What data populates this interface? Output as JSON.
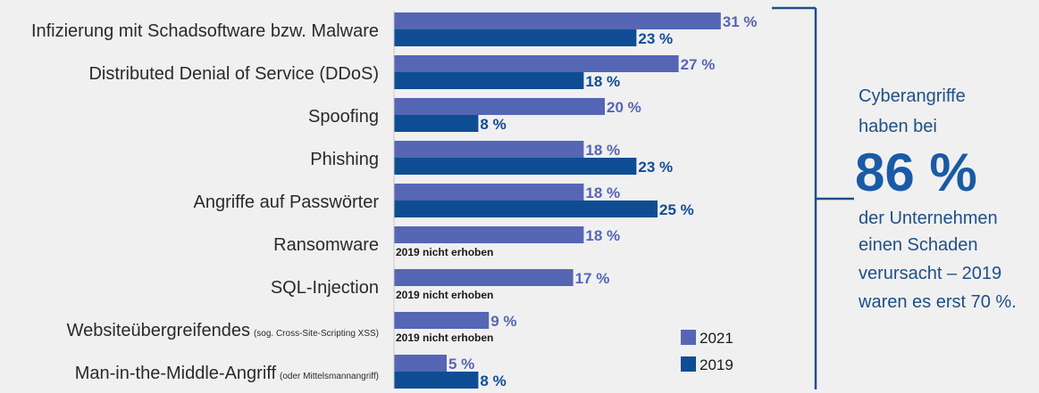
{
  "chart_data": {
    "type": "bar",
    "orientation": "horizontal",
    "categories": [
      {
        "label": "Infizierung mit Schadsoftware bzw. Malware",
        "sub": ""
      },
      {
        "label": "Distributed Denial of Service (DDoS)",
        "sub": ""
      },
      {
        "label": "Spoofing",
        "sub": ""
      },
      {
        "label": "Phishing",
        "sub": ""
      },
      {
        "label": "Angriffe auf Passwörter",
        "sub": ""
      },
      {
        "label": "Ransomware",
        "sub": ""
      },
      {
        "label": "SQL-Injection",
        "sub": ""
      },
      {
        "label": "Websiteübergreifendes",
        "sub": "(sog. Cross-Site-Scripting XSS)"
      },
      {
        "label": "Man-in-the-Middle-Angriff",
        "sub": "(oder Mittelsmannangriff)"
      }
    ],
    "series": [
      {
        "name": "2021",
        "color": "#5566b5",
        "values": [
          31,
          27,
          20,
          18,
          18,
          18,
          17,
          9,
          5
        ],
        "labels": [
          "31 %",
          "27 %",
          "20 %",
          "18 %",
          "18 %",
          "18 %",
          "17 %",
          "9 %",
          "5 %"
        ]
      },
      {
        "name": "2019",
        "color": "#0e4d94",
        "values": [
          23,
          18,
          8,
          23,
          25,
          null,
          null,
          null,
          8
        ],
        "labels": [
          "23 %",
          "18 %",
          "8 %",
          "23 %",
          "25 %",
          "",
          "",
          "",
          "8 %"
        ]
      }
    ],
    "not_collected_note": "2019 nicht erhoben",
    "legend": {
      "position": "bottom-right",
      "items": [
        "2021",
        "2019"
      ]
    },
    "xlim": [
      0,
      31
    ]
  },
  "sidebar": {
    "line1": "Cyberangriffe",
    "line2": "haben bei",
    "big": "86 %",
    "line3": "der Unternehmen",
    "line4": "einen Schaden",
    "line5": "verursacht – 2019",
    "line6": "waren es erst 70 %."
  },
  "colors": {
    "background": "#f0f0f0",
    "series_2021": "#5566b5",
    "series_2019": "#0e4d94",
    "bracket": "#1f4f86"
  }
}
